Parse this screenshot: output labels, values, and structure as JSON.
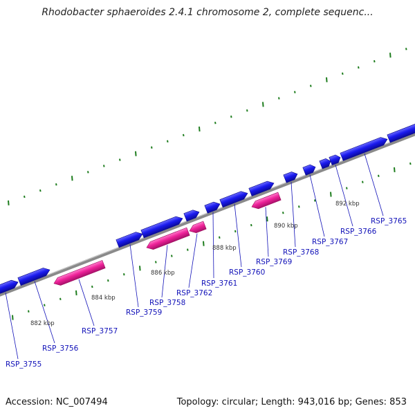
{
  "title": "Rhodobacter sphaeroides 2.4.1 chromosome 2, complete sequenc...",
  "footer": {
    "accession": "Accession: NC_007494",
    "summary": "Topology: circular; Length: 943,016 bp; Genes: 853"
  },
  "colors": {
    "forward_gene": "#1a1aee",
    "reverse_gene": "#ee2299",
    "backbone": "#8a8a8a",
    "ticks": "#1e7d1e",
    "label": "#1010b8"
  },
  "scale_labels": [
    "882 kbp",
    "884 kbp",
    "886 kbp",
    "888 kbp",
    "890 kbp",
    "892 kbp"
  ],
  "genes": [
    {
      "id": "RSP_3755",
      "strand": "forward"
    },
    {
      "id": "RSP_3756",
      "strand": "forward"
    },
    {
      "id": "RSP_3757",
      "strand": "reverse"
    },
    {
      "id": "RSP_3759",
      "strand": "forward"
    },
    {
      "id": "RSP_3758",
      "strand": "reverse"
    },
    {
      "id": "RSP_3762",
      "strand": "reverse"
    },
    {
      "id": "RSP_3761",
      "strand": "forward"
    },
    {
      "id": "RSP_3760",
      "strand": "forward"
    },
    {
      "id": "RSP_3769",
      "strand": "reverse"
    },
    {
      "id": "RSP_3768",
      "strand": "forward"
    },
    {
      "id": "RSP_3767",
      "strand": "forward"
    },
    {
      "id": "RSP_3766",
      "strand": "forward"
    },
    {
      "id": "RSP_3765",
      "strand": "forward"
    }
  ]
}
